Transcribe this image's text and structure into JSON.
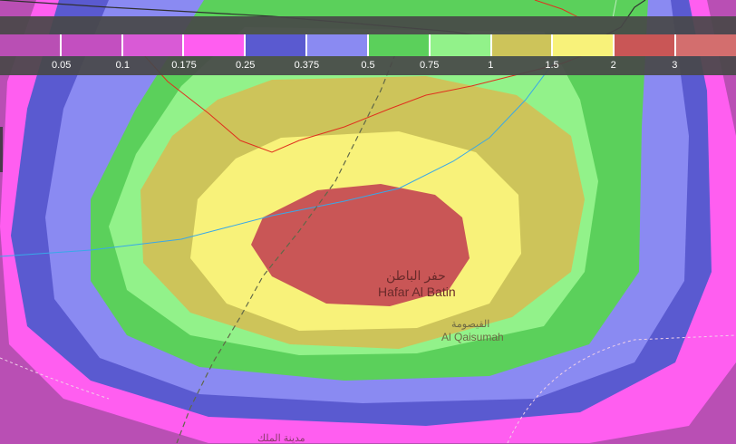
{
  "legend": {
    "items": [
      {
        "label": "",
        "color": "#b94fb4"
      },
      {
        "label": "0.05",
        "color": "#c34fc0"
      },
      {
        "label": "0.1",
        "color": "#d95ad6"
      },
      {
        "label": "0.175",
        "color": "#ff5ef0"
      },
      {
        "label": "0.25",
        "color": "#5a5ad0"
      },
      {
        "label": "0.375",
        "color": "#8a8af2"
      },
      {
        "label": "0.5",
        "color": "#5bd05b"
      },
      {
        "label": "0.75",
        "color": "#92f28a"
      },
      {
        "label": "1",
        "color": "#cdc45a"
      },
      {
        "label": "1.5",
        "color": "#f8f27a"
      },
      {
        "label": "2",
        "color": "#c95656"
      },
      {
        "label": "3",
        "color": "#d36e6e"
      }
    ]
  },
  "places": {
    "hafar_ar": "حفر الباطن",
    "hafar_en": "Hafar Al Batin",
    "qaisumah_ar": "القيصومة",
    "qaisumah_en": "Al Qaisumah",
    "madinat_ar": "مدينة الملك"
  },
  "colors": {
    "zone_outer": "#b94fb4",
    "zone_magenta": "#ff5ef0",
    "zone_blue": "#5a5ad0",
    "zone_lightblue": "#8a8af2",
    "zone_green": "#5bd05b",
    "zone_lightgreen": "#92f28a",
    "zone_olive": "#cdc45a",
    "zone_yellow": "#f8f27a",
    "zone_red": "#c95656",
    "road_red": "#e0301e",
    "road_blue": "#38a8e8",
    "road_dark": "#303030"
  }
}
